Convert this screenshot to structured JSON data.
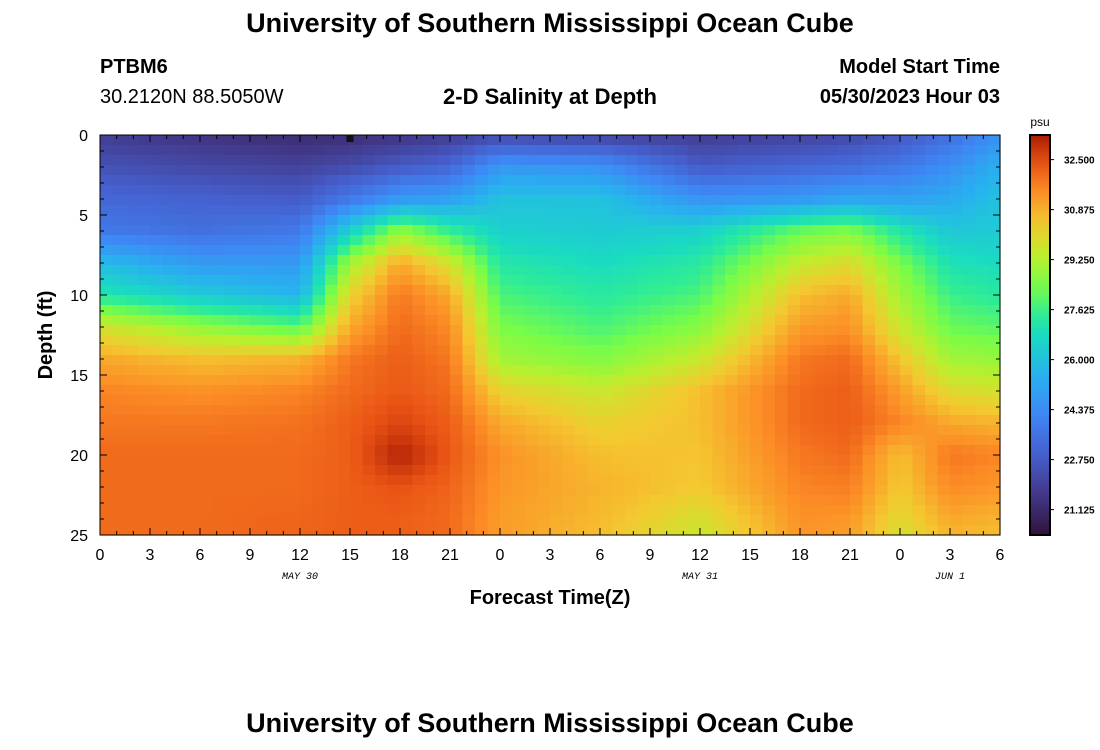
{
  "header": {
    "title": "University of Southern Mississippi Ocean Cube",
    "station_id": "PTBM6",
    "coordinates": "30.2120N  88.5050W",
    "subtitle": "2-D Salinity at Depth",
    "model_start_label": "Model Start Time",
    "model_start_value": "05/30/2023 Hour 03"
  },
  "footer": {
    "title": "University of Southern Mississippi Ocean Cube"
  },
  "chart_data": {
    "type": "heatmap",
    "title": "2-D Salinity at Depth",
    "xlabel": "Forecast Time(Z)",
    "ylabel": "Depth (ft)",
    "x_ticks": [
      "0",
      "3",
      "6",
      "9",
      "12",
      "15",
      "18",
      "21",
      "0",
      "3",
      "6",
      "9",
      "12",
      "15",
      "18",
      "21",
      "0",
      "3",
      "6"
    ],
    "x_range_hours": [
      0,
      54
    ],
    "date_labels": [
      {
        "text": "MAY 30",
        "hour": 12
      },
      {
        "text": "MAY 31",
        "hour": 36
      },
      {
        "text": "JUN 1",
        "hour": 51
      }
    ],
    "y_ticks": [
      "0",
      "5",
      "10",
      "15",
      "20",
      "25"
    ],
    "y_range_ft": [
      0,
      25
    ],
    "colorbar": {
      "unit": "psu",
      "min": 20.3,
      "max": 33.3,
      "tick_labels": [
        "32.500",
        "30.875",
        "29.250",
        "27.625",
        "26.000",
        "24.375",
        "22.750",
        "21.125"
      ],
      "tick_values": [
        32.5,
        30.875,
        29.25,
        27.625,
        26.0,
        24.375,
        22.75,
        21.125
      ]
    },
    "salinity_psu": {
      "x_hours": [
        0,
        6,
        12,
        15,
        18,
        21,
        24,
        30,
        36,
        42,
        45,
        48,
        51,
        54
      ],
      "depth_ft": [
        0,
        2,
        4,
        6,
        8,
        10,
        12,
        14,
        16,
        18,
        20,
        22,
        24,
        25
      ],
      "values": [
        [
          21.8,
          21.5,
          21.2,
          21.3,
          21.5,
          21.8,
          22.2,
          22.0,
          21.8,
          22.0,
          22.2,
          22.6,
          23.5,
          24.5
        ],
        [
          22.5,
          22.2,
          22.0,
          22.3,
          22.8,
          23.2,
          24.8,
          24.6,
          22.8,
          23.2,
          23.4,
          23.8,
          24.5,
          25.5
        ],
        [
          23.2,
          23.0,
          22.8,
          23.8,
          24.8,
          25.0,
          26.0,
          26.0,
          24.6,
          24.8,
          25.2,
          25.0,
          25.3,
          26.0
        ],
        [
          23.8,
          23.5,
          23.8,
          26.5,
          28.8,
          27.5,
          26.5,
          26.3,
          26.5,
          28.2,
          28.5,
          27.2,
          26.2,
          26.3
        ],
        [
          25.8,
          24.8,
          24.8,
          29.0,
          31.0,
          29.8,
          27.2,
          26.8,
          27.3,
          29.5,
          30.0,
          28.4,
          27.0,
          26.8
        ],
        [
          27.2,
          26.3,
          25.6,
          30.2,
          31.8,
          31.0,
          27.8,
          27.3,
          27.8,
          30.6,
          31.0,
          29.0,
          27.6,
          27.3
        ],
        [
          29.8,
          28.8,
          28.0,
          31.0,
          32.0,
          31.5,
          28.4,
          27.8,
          28.6,
          31.2,
          31.4,
          29.6,
          28.2,
          28.0
        ],
        [
          31.0,
          30.6,
          30.8,
          31.8,
          32.2,
          31.8,
          29.0,
          28.5,
          29.6,
          31.8,
          32.0,
          30.5,
          29.0,
          28.8
        ],
        [
          31.6,
          31.4,
          31.6,
          32.0,
          32.3,
          32.0,
          30.2,
          29.6,
          30.6,
          32.0,
          32.2,
          31.2,
          30.0,
          29.8
        ],
        [
          31.8,
          31.8,
          31.9,
          32.2,
          32.6,
          32.2,
          31.0,
          30.2,
          30.6,
          32.0,
          32.2,
          31.6,
          31.0,
          30.8
        ],
        [
          32.0,
          32.0,
          32.0,
          32.2,
          33.2,
          32.3,
          31.4,
          30.6,
          30.5,
          31.8,
          32.0,
          30.6,
          31.8,
          31.6
        ],
        [
          32.0,
          32.0,
          32.0,
          32.2,
          32.4,
          32.1,
          31.3,
          30.8,
          30.4,
          31.6,
          31.7,
          30.4,
          31.5,
          31.3
        ],
        [
          32.0,
          32.0,
          32.1,
          32.2,
          32.2,
          32.0,
          31.2,
          30.7,
          29.8,
          31.4,
          31.3,
          30.0,
          31.0,
          30.8
        ],
        [
          32.0,
          32.0,
          32.1,
          32.2,
          32.2,
          32.0,
          31.2,
          30.6,
          29.6,
          31.3,
          31.2,
          29.8,
          30.8,
          30.6
        ]
      ]
    }
  }
}
